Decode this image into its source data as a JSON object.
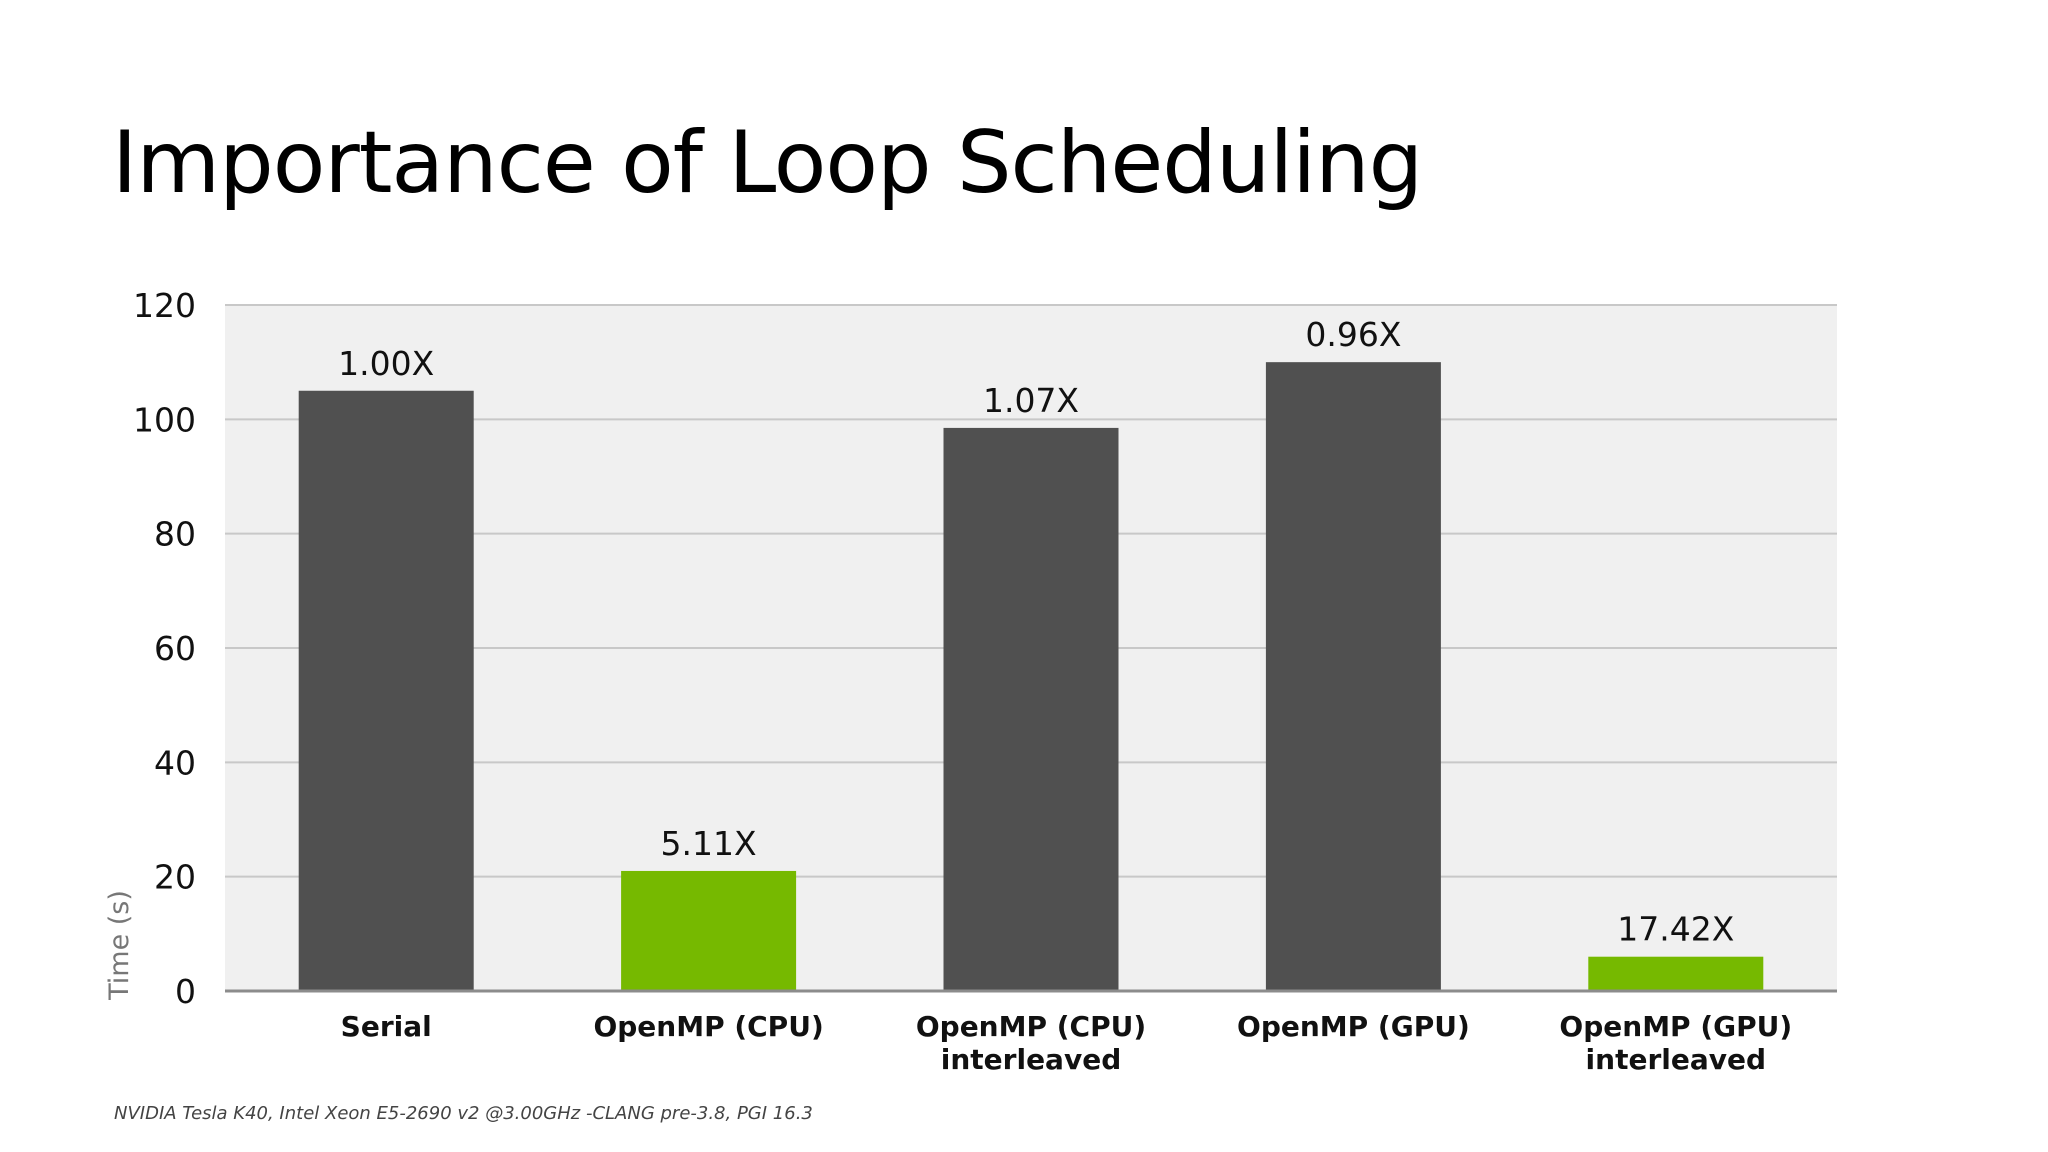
{
  "slide": {
    "title": "Importance of Loop Scheduling",
    "footnote": "NVIDIA Tesla K40, Intel Xeon E5-2690 v2 @3.00GHz -CLANG pre-3.8, PGI 16.3"
  },
  "chart_data": {
    "type": "bar",
    "title": "",
    "xlabel": "",
    "ylabel": "Time (s)",
    "ylim": [
      0,
      120
    ],
    "yticks": [
      0,
      20,
      40,
      60,
      80,
      100,
      120
    ],
    "grid": true,
    "categories": [
      [
        "Serial"
      ],
      [
        "OpenMP (CPU)"
      ],
      [
        "OpenMP (CPU)",
        "interleaved"
      ],
      [
        "OpenMP (GPU)"
      ],
      [
        "OpenMP (GPU)",
        "interleaved"
      ]
    ],
    "values": [
      105,
      21,
      98.5,
      110,
      6
    ],
    "data_labels": [
      "1.00X",
      "5.11X",
      "1.07X",
      "0.96X",
      "17.42X"
    ],
    "colors": {
      "gray": "#505050",
      "green": "#76b900",
      "plot_background": "#f0f0f0",
      "gridline": "#c8c8c8",
      "baseline": "#8c8c8c"
    },
    "bar_colors": [
      "gray",
      "green",
      "gray",
      "gray",
      "green"
    ]
  }
}
